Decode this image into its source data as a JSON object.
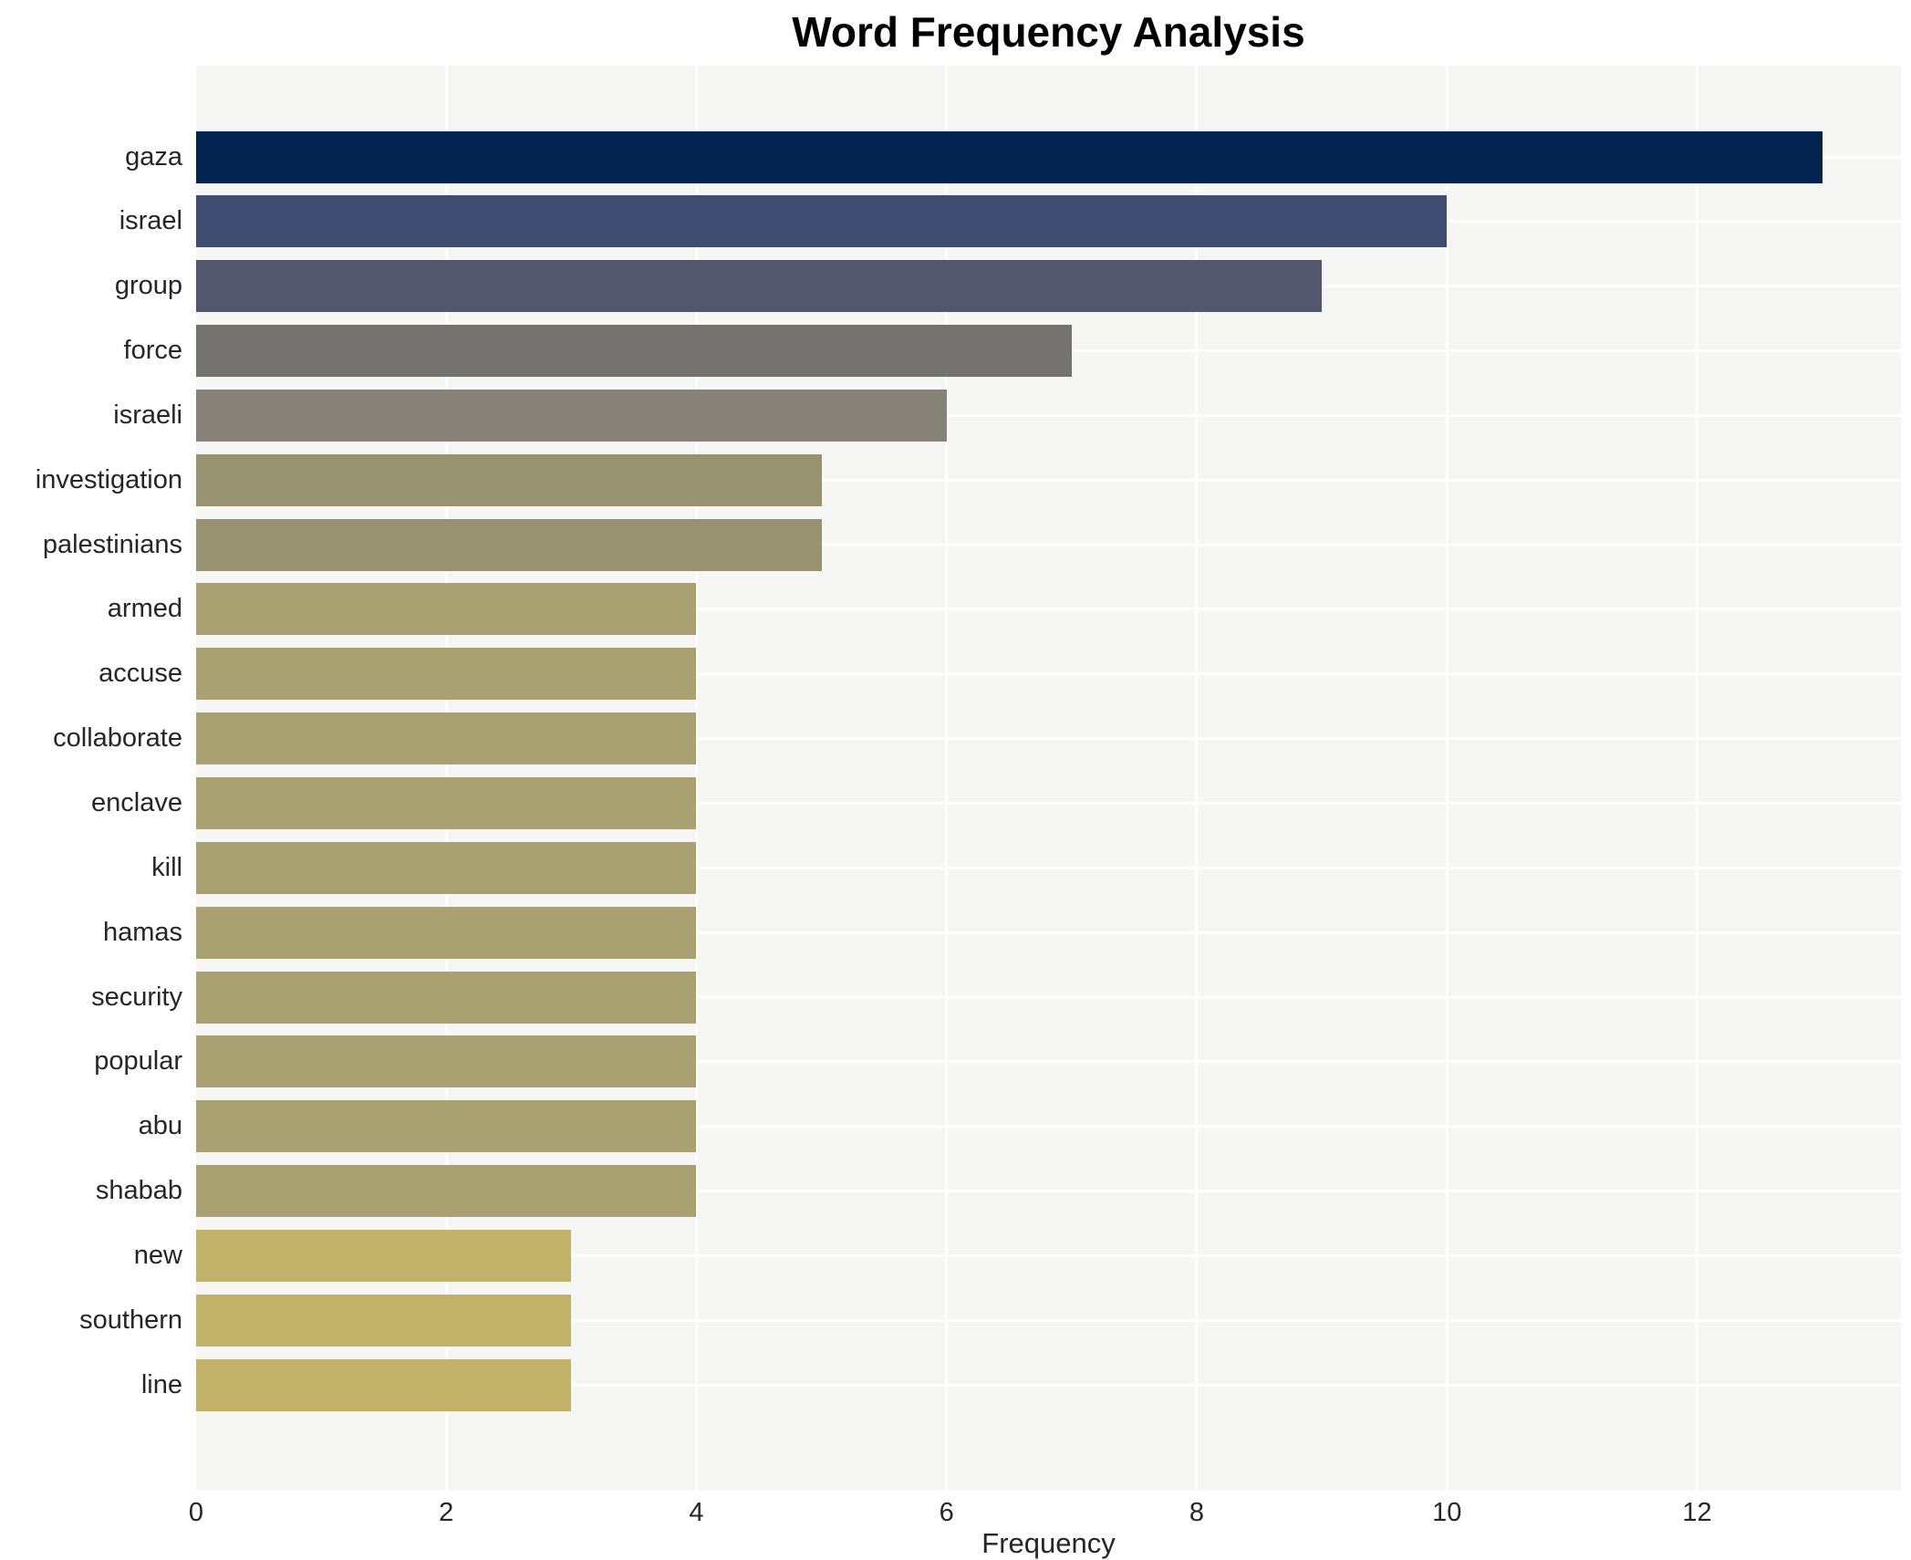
{
  "chart_data": {
    "type": "bar",
    "orientation": "horizontal",
    "title": "Word Frequency Analysis",
    "xlabel": "Frequency",
    "ylabel": "",
    "categories": [
      "gaza",
      "israel",
      "group",
      "force",
      "israeli",
      "investigation",
      "palestinians",
      "armed",
      "accuse",
      "collaborate",
      "enclave",
      "kill",
      "hamas",
      "security",
      "popular",
      "abu",
      "shabab",
      "new",
      "southern",
      "line"
    ],
    "values": [
      13,
      10,
      9,
      7,
      6,
      5,
      5,
      4,
      4,
      4,
      4,
      4,
      4,
      4,
      4,
      4,
      4,
      3,
      3,
      3
    ],
    "bar_colors": [
      "#02234f",
      "#404d72",
      "#53566c",
      "#737270",
      "#868277",
      "#97926f",
      "#97926f",
      "#aaa173",
      "#aaa173",
      "#aaa173",
      "#aaa173",
      "#aaa173",
      "#aaa173",
      "#aaa173",
      "#aaa173",
      "#aaa173",
      "#aaa173",
      "#c2b169",
      "#c2b169",
      "#c2b169"
    ],
    "xticks": [
      0,
      2,
      4,
      6,
      8,
      10,
      12
    ],
    "xlim": [
      0,
      13.63
    ],
    "grid": true,
    "legend": "none",
    "plot_background": "#f6f6f5",
    "grid_color": "#ffffff",
    "text_color": "#262626",
    "title_color": "#000000"
  }
}
